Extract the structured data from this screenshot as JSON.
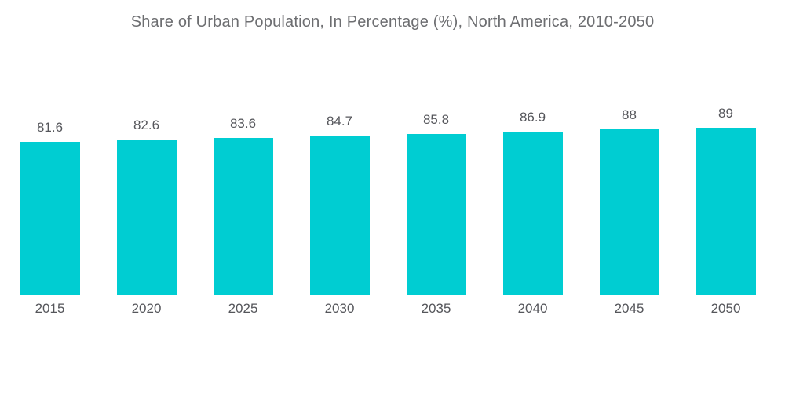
{
  "title": "Share of Urban Population, In Percentage (%), North America, 2010-2050",
  "chart_data": {
    "type": "bar",
    "title": "Share of Urban Population, In Percentage (%), North America, 2010-2050",
    "categories": [
      "2015",
      "2020",
      "2025",
      "2030",
      "2035",
      "2040",
      "2045",
      "2050"
    ],
    "values": [
      81.6,
      82.6,
      83.6,
      84.7,
      85.8,
      86.9,
      88,
      89
    ],
    "value_labels": [
      "81.6",
      "82.6",
      "83.6",
      "84.7",
      "85.8",
      "86.9",
      "88",
      "89"
    ],
    "xlabel": "",
    "ylabel": "",
    "ylim": [
      0,
      89
    ],
    "grid": false,
    "legend": "none",
    "bar_color": "#00cdd2"
  },
  "colors": {
    "background": "#ffffff",
    "bar": "#00cdd2",
    "title_text": "#6d6e71",
    "label_text": "#55565b"
  }
}
